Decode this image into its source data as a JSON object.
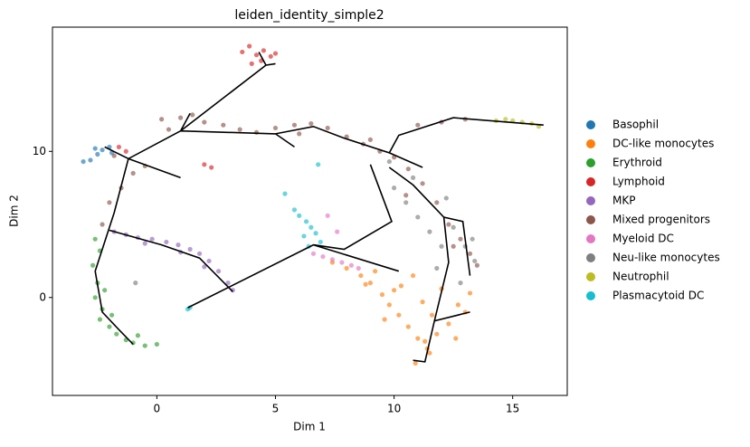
{
  "chart_data": {
    "type": "scatter",
    "title": "leiden_identity_simple2",
    "x_label": "Dim 1",
    "y_label": "Dim 2",
    "xlim": [
      -4.4,
      17.3
    ],
    "ylim": [
      -6.7,
      18.5
    ],
    "xticks": [
      0,
      5,
      10,
      15
    ],
    "yticks": [
      0,
      10
    ],
    "series": [
      {
        "name": "Basophil",
        "color": "#1f77b4",
        "x": [
          -3.1,
          -2.8,
          -2.5,
          -2.3,
          -2.0,
          -2.6,
          -1.9
        ],
        "y": [
          9.3,
          9.4,
          9.8,
          10.1,
          10.3,
          10.2,
          9.9
        ]
      },
      {
        "name": "DC-like monocytes",
        "color": "#ff7f0e",
        "x": [
          7.4,
          8.0,
          8.6,
          9.0,
          9.5,
          9.8,
          10.2,
          10.6,
          11.0,
          11.4,
          11.8,
          12.3,
          12.7,
          13.2,
          10.3,
          10.8,
          11.2,
          11.6,
          12.0,
          9.2,
          10.0,
          11.5,
          12.6,
          10.9,
          11.3,
          8.8,
          9.6,
          13.0
        ],
        "y": [
          2.4,
          2.0,
          1.5,
          1.0,
          0.2,
          -0.5,
          -1.2,
          -2.0,
          -2.8,
          -3.5,
          -2.5,
          -1.8,
          -0.5,
          0.3,
          0.8,
          1.5,
          -0.3,
          -1.2,
          0.6,
          1.8,
          0.5,
          -3.8,
          -2.8,
          -4.5,
          -3.0,
          0.9,
          -1.5,
          -1.0
        ]
      },
      {
        "name": "Erythroid",
        "color": "#2ca02c",
        "x": [
          -2.6,
          -2.4,
          -2.7,
          -2.5,
          -2.6,
          -2.3,
          -2.4,
          -2.0,
          -1.7,
          -1.3,
          -1.0,
          -0.5,
          0.0,
          -0.8,
          -2.2,
          -1.9
        ],
        "y": [
          4.0,
          3.2,
          2.2,
          1.0,
          0.0,
          -0.8,
          -1.5,
          -2.0,
          -2.5,
          -2.9,
          -3.1,
          -3.3,
          -3.2,
          -2.6,
          0.5,
          -1.2
        ]
      },
      {
        "name": "Lymphoid",
        "color": "#d62728",
        "x": [
          3.6,
          3.9,
          4.2,
          4.5,
          4.8,
          5.0,
          4.4,
          4.0,
          -1.6,
          -1.3,
          2.0,
          2.3
        ],
        "y": [
          16.8,
          17.2,
          16.6,
          16.9,
          16.5,
          16.7,
          16.2,
          16.0,
          10.3,
          10.0,
          9.1,
          8.9
        ]
      },
      {
        "name": "MKP",
        "color": "#9467bd",
        "x": [
          -1.8,
          -1.3,
          -0.8,
          -0.2,
          0.4,
          0.9,
          1.4,
          1.8,
          2.2,
          2.6,
          3.0,
          3.2,
          -0.5,
          1.0,
          2.0
        ],
        "y": [
          4.5,
          4.3,
          4.1,
          4.0,
          3.8,
          3.6,
          3.3,
          3.0,
          2.5,
          1.8,
          1.0,
          0.5,
          3.7,
          3.1,
          2.1
        ]
      },
      {
        "name": "Mixed progenitors",
        "color": "#8c564b",
        "x": [
          -2.3,
          -2.0,
          -1.5,
          -1.0,
          -0.5,
          0.5,
          1.0,
          1.5,
          2.0,
          2.8,
          3.5,
          4.2,
          5.0,
          5.8,
          6.5,
          7.2,
          8.0,
          8.7,
          9.4,
          10.0,
          10.6,
          11.2,
          11.8,
          12.3,
          12.8,
          13.2,
          13.5,
          11.0,
          12.0,
          13.0,
          -1.8,
          0.2,
          6.0,
          9.0,
          10.5,
          12.5
        ],
        "y": [
          5.0,
          6.5,
          7.5,
          8.5,
          9.0,
          11.5,
          12.3,
          12.5,
          12.0,
          11.8,
          11.5,
          11.3,
          11.6,
          11.8,
          11.9,
          11.6,
          11.0,
          10.5,
          10.0,
          9.6,
          8.8,
          7.8,
          6.5,
          5.0,
          4.0,
          3.0,
          2.2,
          11.8,
          12.0,
          12.2,
          9.7,
          12.2,
          11.2,
          10.8,
          7.0,
          3.5
        ]
      },
      {
        "name": "Myeloid DC",
        "color": "#e377c2",
        "x": [
          6.6,
          7.0,
          7.4,
          7.8,
          8.2,
          8.5,
          7.2,
          7.6
        ],
        "y": [
          3.0,
          2.8,
          2.6,
          2.4,
          2.2,
          2.0,
          5.6,
          4.5
        ]
      },
      {
        "name": "Neu-like monocytes",
        "color": "#7f7f7f",
        "x": [
          10.0,
          10.5,
          11.0,
          11.5,
          12.0,
          12.5,
          13.0,
          13.4,
          11.8,
          12.8,
          10.8,
          12.2,
          13.3,
          9.8,
          -0.9
        ],
        "y": [
          7.5,
          6.5,
          5.5,
          4.5,
          3.5,
          4.8,
          3.5,
          2.5,
          2.0,
          1.0,
          8.2,
          6.8,
          4.0,
          9.3,
          1.0
        ]
      },
      {
        "name": "Neutrophil",
        "color": "#bcbd22",
        "x": [
          14.3,
          14.7,
          15.0,
          15.4,
          15.8,
          16.1
        ],
        "y": [
          12.1,
          12.2,
          12.1,
          12.0,
          11.9,
          11.7
        ]
      },
      {
        "name": "Plasmacytoid DC",
        "color": "#17becf",
        "x": [
          5.8,
          6.0,
          6.3,
          6.5,
          6.7,
          6.9,
          6.4,
          6.2,
          5.4,
          6.8,
          1.4,
          1.3
        ],
        "y": [
          6.0,
          5.6,
          5.2,
          4.8,
          4.4,
          3.8,
          3.5,
          4.2,
          7.1,
          9.1,
          -0.7,
          -0.8
        ]
      }
    ],
    "trajectory": {
      "color": "#000000",
      "x": [
        4.3,
        4.6,
        5.0,
        null,
        4.6,
        1.0,
        1.4,
        null,
        1.0,
        5.0,
        5.8,
        null,
        5.0,
        6.6,
        7.9,
        9.8,
        10.2,
        12.5,
        16.3,
        null,
        -2.2,
        -1.2,
        1.0,
        null,
        -1.2,
        1.0,
        null,
        -1.2,
        -1.8,
        -2.6,
        -2.3,
        -1.6,
        -1.0,
        null,
        -2.0,
        0.2,
        1.8,
        3.2,
        null,
        1.3,
        6.6,
        10.2,
        null,
        6.6,
        7.9,
        9.9,
        9.0,
        null,
        9.8,
        11.2,
        null,
        9.8,
        10.8,
        12.1,
        12.9,
        13.2,
        null,
        12.1,
        12.3,
        11.7,
        13.2,
        null,
        11.7,
        11.3,
        10.8
      ],
      "y": [
        16.8,
        15.9,
        16.0,
        null,
        15.9,
        11.4,
        12.6,
        null,
        11.4,
        11.2,
        10.3,
        null,
        11.2,
        11.7,
        10.9,
        9.9,
        11.1,
        12.3,
        11.8,
        null,
        10.3,
        9.5,
        11.4,
        null,
        9.5,
        8.2,
        null,
        9.5,
        5.8,
        1.8,
        -1.0,
        -2.2,
        -3.2,
        null,
        4.6,
        3.6,
        2.7,
        0.4,
        null,
        -0.7,
        3.6,
        1.8,
        null,
        3.6,
        3.3,
        5.2,
        9.1,
        null,
        9.9,
        8.9,
        null,
        8.9,
        7.7,
        5.5,
        5.2,
        1.5,
        null,
        5.5,
        2.4,
        -1.6,
        -1.0,
        null,
        -1.6,
        -4.4,
        -4.3
      ]
    }
  }
}
